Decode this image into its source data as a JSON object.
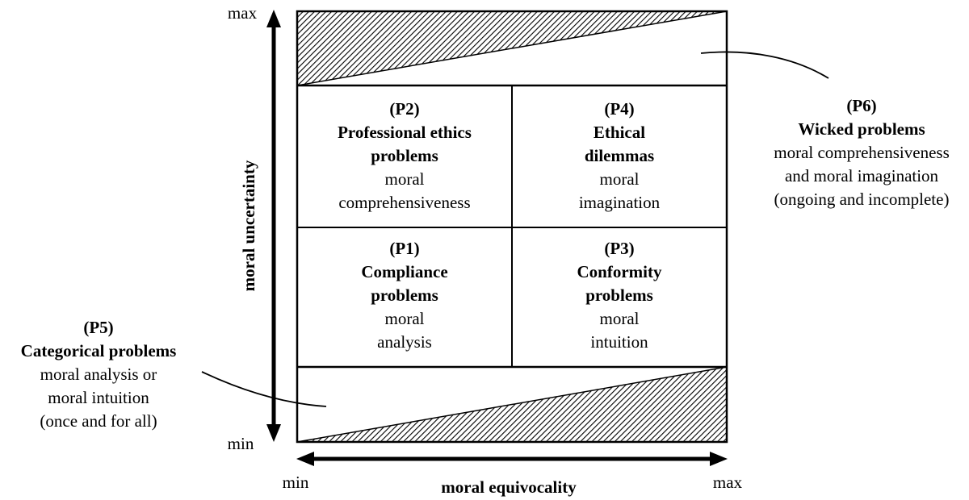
{
  "axes": {
    "y_label": "moral uncertainty",
    "y_max": "max",
    "y_min": "min",
    "x_label": "moral equivocality",
    "x_min": "min",
    "x_max": "max"
  },
  "cells": {
    "p2": {
      "code": "(P2)",
      "title_1": "Professional ethics",
      "title_2": "problems",
      "desc_1": "moral",
      "desc_2": "comprehensiveness"
    },
    "p4": {
      "code": "(P4)",
      "title_1": "Ethical",
      "title_2": "dilemmas",
      "desc_1": "moral",
      "desc_2": "imagination"
    },
    "p1": {
      "code": "(P1)",
      "title_1": "Compliance",
      "title_2": "problems",
      "desc_1": "moral",
      "desc_2": "analysis"
    },
    "p3": {
      "code": "(P3)",
      "title_1": "Conformity",
      "title_2": "problems",
      "desc_1": "moral",
      "desc_2": "intuition"
    }
  },
  "callouts": {
    "p5": {
      "code": "(P5)",
      "title": "Categorical problems",
      "desc_1": "moral analysis or",
      "desc_2": "moral intuition",
      "desc_3": "(once and for all)"
    },
    "p6": {
      "code": "(P6)",
      "title": "Wicked problems",
      "desc_1": "moral comprehensiveness",
      "desc_2": "and moral imagination",
      "desc_3": "(ongoing and incomplete)"
    }
  },
  "colors": {
    "ink": "#000000",
    "background": "#ffffff"
  }
}
